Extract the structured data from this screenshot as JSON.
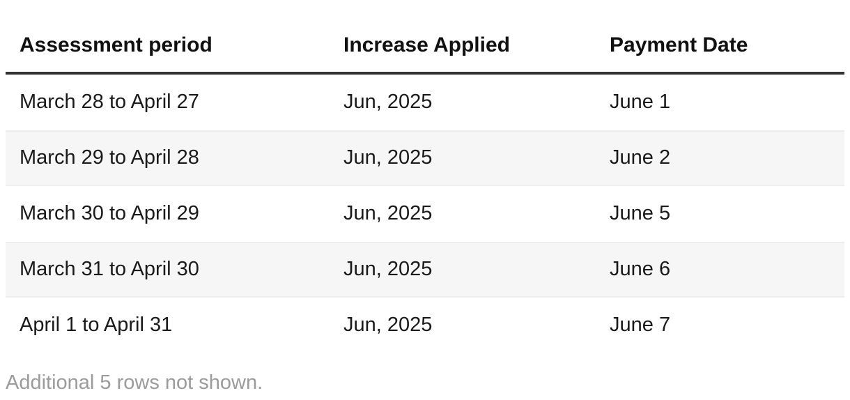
{
  "table": {
    "columns": [
      "Assessment period",
      "Increase Applied",
      "Payment Date"
    ],
    "rows": [
      [
        "March 28 to April 27",
        "Jun, 2025",
        "June 1"
      ],
      [
        "March 29 to April 28",
        "Jun, 2025",
        "June 2"
      ],
      [
        "March 30 to April 29",
        "Jun, 2025",
        "June 5"
      ],
      [
        "March 31 to April 30",
        "Jun, 2025",
        "June 6"
      ],
      [
        "April 1 to April 31",
        "Jun, 2025",
        "June 7"
      ]
    ],
    "footer_note": "Additional 5 rows not shown."
  },
  "colors": {
    "background": "#ffffff",
    "header_text": "#111111",
    "body_text": "#1a1a1a",
    "header_rule": "#333333",
    "row_stripe": "#f6f6f6",
    "stripe_edge": "#ededed",
    "note_text": "#9b9b9b"
  },
  "chart_data": {
    "type": "table",
    "title": "",
    "columns": [
      "Assessment period",
      "Increase Applied",
      "Payment Date"
    ],
    "rows": [
      [
        "March 28 to April 27",
        "Jun, 2025",
        "June 1"
      ],
      [
        "March 29 to April 28",
        "Jun, 2025",
        "June 2"
      ],
      [
        "March 30 to April 29",
        "Jun, 2025",
        "June 5"
      ],
      [
        "March 31 to April 30",
        "Jun, 2025",
        "June 6"
      ],
      [
        "April 1 to April 31",
        "Jun, 2025",
        "June 7"
      ]
    ],
    "footnote": "Additional 5 rows not shown.",
    "hidden_rows_count": 5
  }
}
